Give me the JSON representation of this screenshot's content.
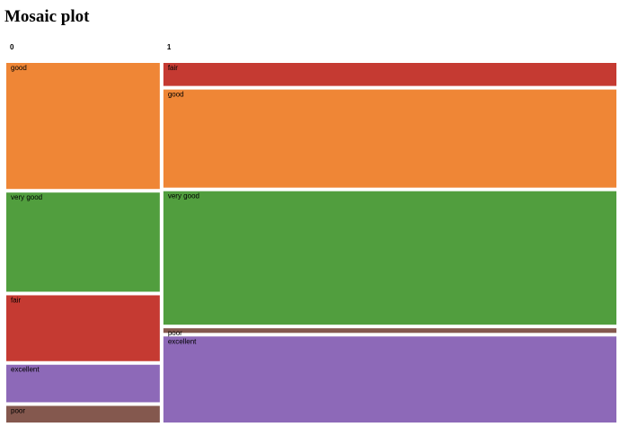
{
  "page": {
    "title": "Mosaic plot"
  },
  "chart_data": {
    "type": "mosaic",
    "title": "Mosaic plot",
    "categories": [
      "0",
      "1"
    ],
    "column_widths": [
      0.2575,
      0.7425
    ],
    "columns": [
      {
        "name": "0",
        "segments": [
          {
            "label": "good",
            "value": 0.356,
            "color": "#ef8636"
          },
          {
            "label": "very good",
            "value": 0.28,
            "color": "#519e3e"
          },
          {
            "label": "fair",
            "value": 0.186,
            "color": "#c53a32"
          },
          {
            "label": "excellent",
            "value": 0.106,
            "color": "#8d69b8"
          },
          {
            "label": "poor",
            "value": 0.047,
            "color": "#84584e"
          }
        ]
      },
      {
        "name": "1",
        "segments": [
          {
            "label": "fair",
            "value": 0.065,
            "color": "#c53a32"
          },
          {
            "label": "good",
            "value": 0.277,
            "color": "#ef8636"
          },
          {
            "label": "very good",
            "value": 0.377,
            "color": "#519e3e"
          },
          {
            "label": "poor",
            "value": 0.013,
            "color": "#84584e"
          },
          {
            "label": "excellent",
            "value": 0.243,
            "color": "#8d69b8"
          }
        ]
      }
    ]
  }
}
